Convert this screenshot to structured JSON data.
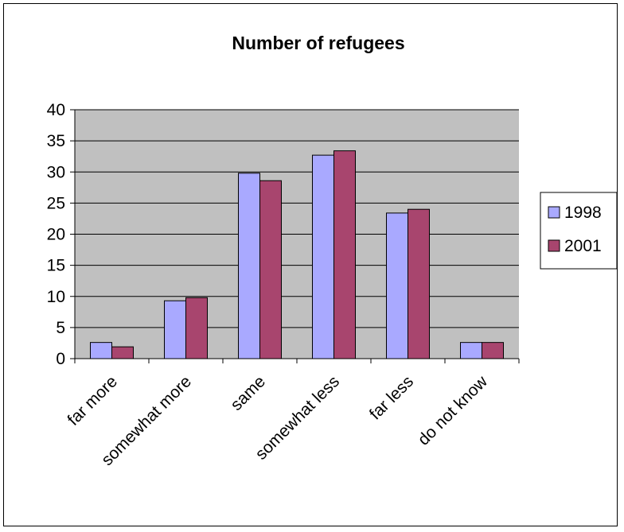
{
  "chart_data": {
    "type": "bar",
    "title": "Number of refugees",
    "xlabel": "",
    "ylabel": "",
    "categories": [
      "far more",
      "somewhat more",
      "same",
      "somewhat less",
      "far less",
      "do not know"
    ],
    "series": [
      {
        "name": "1998",
        "values": [
          2.6,
          9.3,
          29.8,
          32.7,
          23.4,
          2.6
        ],
        "color": "#a9a9ff"
      },
      {
        "name": "2001",
        "values": [
          1.9,
          9.8,
          28.6,
          33.4,
          24.0,
          2.6
        ],
        "color": "#a8456e"
      }
    ],
    "ylim": [
      0,
      40
    ],
    "yticks": [
      0,
      5,
      10,
      15,
      20,
      25,
      30,
      35,
      40
    ],
    "grid": true,
    "plot_background": "#c0c0c0",
    "legend_position": "right"
  }
}
